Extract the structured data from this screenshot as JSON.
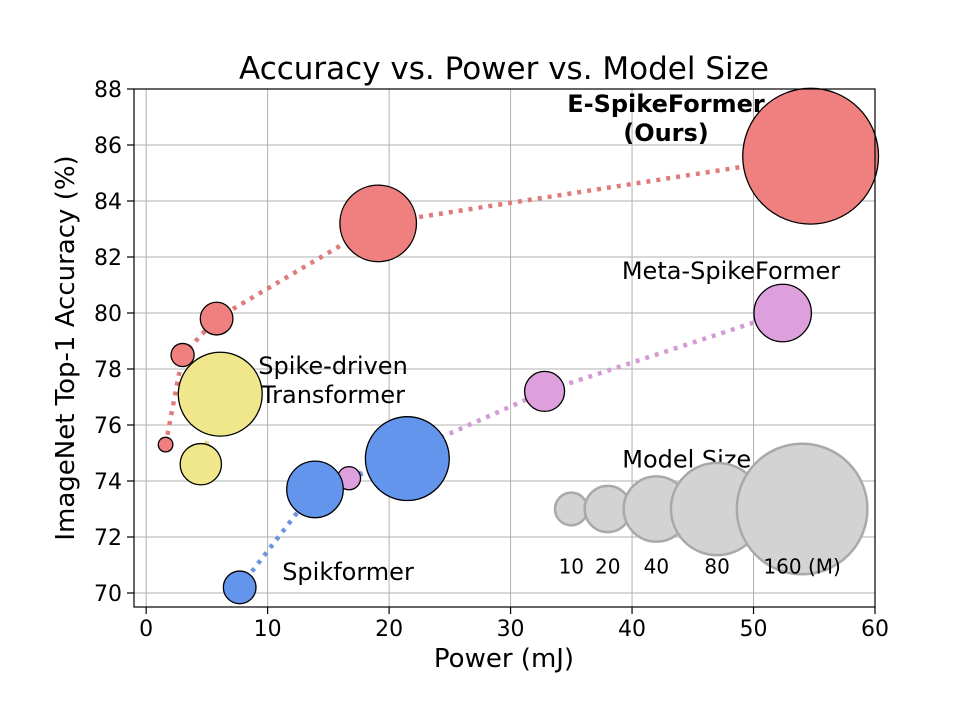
{
  "chart_data": {
    "type": "scatter",
    "title": "Accuracy vs. Power vs. Model Size",
    "xlabel": "Power (mJ)",
    "ylabel": "ImageNet Top-1 Accuracy (%)",
    "xlim": [
      -1,
      60
    ],
    "ylim": [
      69.5,
      88
    ],
    "grid": true,
    "x_ticks": [
      0,
      10,
      20,
      30,
      40,
      50,
      60
    ],
    "y_ticks": [
      70,
      72,
      74,
      76,
      78,
      80,
      82,
      84,
      86,
      88
    ],
    "series": [
      {
        "name": "E-SpikeFormer",
        "label_lines": [
          "E-SpikeFormer",
          "(Ours)"
        ],
        "color": "#f08080",
        "line_color": "#e07b7b",
        "points": [
          {
            "x": 1.6,
            "y": 75.3,
            "size_m": 2
          },
          {
            "x": 3.0,
            "y": 78.5,
            "size_m": 5
          },
          {
            "x": 5.8,
            "y": 79.8,
            "size_m": 10
          },
          {
            "x": 19.1,
            "y": 83.2,
            "size_m": 55
          },
          {
            "x": 54.7,
            "y": 85.6,
            "size_m": 173
          }
        ]
      },
      {
        "name": "Meta-SpikeFormer",
        "label_lines": [
          "Meta-SpikeFormer"
        ],
        "color": "#dda0dd",
        "line_color": "#d49ad4",
        "points": [
          {
            "x": 16.7,
            "y": 74.1,
            "size_m": 5
          },
          {
            "x": 32.8,
            "y": 77.2,
            "size_m": 15
          },
          {
            "x": 52.4,
            "y": 80.0,
            "size_m": 31
          }
        ]
      },
      {
        "name": "Spike-driven Transformer",
        "label_lines": [
          "Spike-driven",
          "Transformer"
        ],
        "color": "#f0e68c",
        "line_color": "#e8dc80",
        "points": [
          {
            "x": 4.5,
            "y": 74.6,
            "size_m": 16
          },
          {
            "x": 6.1,
            "y": 77.1,
            "size_m": 66
          }
        ]
      },
      {
        "name": "Spikformer",
        "label_lines": [
          "Spikformer"
        ],
        "color": "#6495ed",
        "line_color": "#6a96e0",
        "points": [
          {
            "x": 7.7,
            "y": 70.2,
            "size_m": 10
          },
          {
            "x": 13.9,
            "y": 73.7,
            "size_m": 30
          },
          {
            "x": 21.5,
            "y": 74.8,
            "size_m": 66
          }
        ]
      }
    ],
    "size_legend": {
      "title": "Model Size",
      "color": "#d3d3d3",
      "edge_color": "#a9a9a9",
      "sizes": [
        10,
        20,
        40,
        80,
        160
      ],
      "labels": [
        "10",
        "20",
        "40",
        "80",
        "160 (M)"
      ]
    }
  }
}
